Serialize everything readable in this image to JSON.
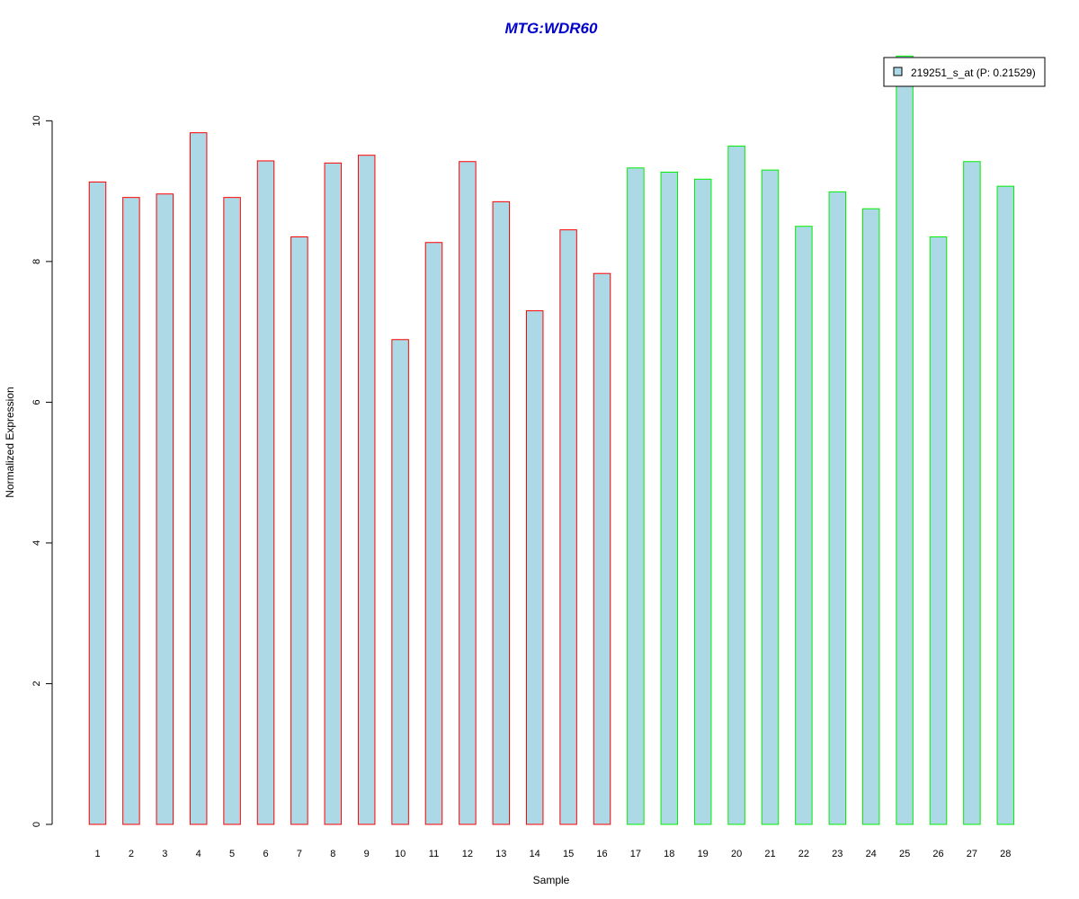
{
  "chart_data": {
    "type": "bar",
    "title": "MTG:WDR60",
    "xlabel": "Sample",
    "ylabel": "Normalized Expression",
    "ylim": [
      0,
      10.95
    ],
    "yticks": [
      0,
      2,
      4,
      6,
      8,
      10
    ],
    "grid": false,
    "categories": [
      "1",
      "2",
      "3",
      "4",
      "5",
      "6",
      "7",
      "8",
      "9",
      "10",
      "11",
      "12",
      "13",
      "14",
      "15",
      "16",
      "17",
      "18",
      "19",
      "20",
      "21",
      "22",
      "23",
      "24",
      "25",
      "26",
      "27",
      "28"
    ],
    "series": [
      {
        "name": "219251_s_at (P: 0.21529)",
        "values": [
          9.13,
          8.91,
          8.96,
          9.83,
          8.91,
          9.43,
          8.35,
          9.4,
          9.51,
          6.89,
          8.27,
          9.42,
          8.85,
          7.3,
          8.45,
          7.83,
          9.33,
          9.27,
          9.17,
          9.64,
          9.3,
          8.5,
          8.99,
          8.75,
          10.92,
          8.35,
          9.42,
          9.07
        ]
      }
    ],
    "groups": [
      {
        "from": 1,
        "to": 16,
        "border_color": "#ff0000"
      },
      {
        "from": 17,
        "to": 28,
        "border_color": "#00ee00"
      }
    ],
    "bar_fill_color": "#add8e6",
    "title_color": "#0000cc",
    "legend_position": "top-right"
  }
}
